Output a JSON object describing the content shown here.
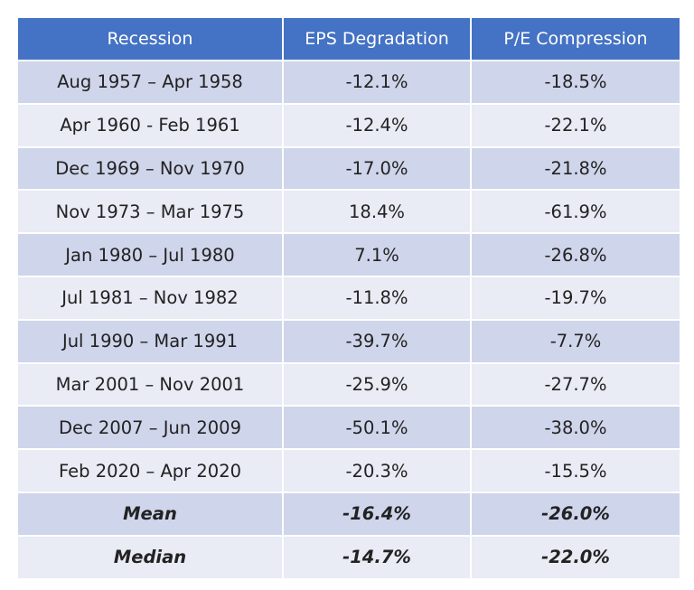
{
  "table": {
    "header": [
      "Recession",
      "EPS Degradation",
      "P/E Compression"
    ],
    "rows": [
      [
        "Aug 1957 – Apr 1958",
        "-12.1%",
        "-18.5%"
      ],
      [
        "Apr 1960 - Feb 1961",
        "-12.4%",
        "-22.1%"
      ],
      [
        "Dec 1969 – Nov 1970",
        "-17.0%",
        "-21.8%"
      ],
      [
        "Nov 1973 – Mar 1975",
        "18.4%",
        "-61.9%"
      ],
      [
        "Jan 1980 – Jul 1980",
        "7.1%",
        "-26.8%"
      ],
      [
        "Jul 1981 – Nov 1982",
        "-11.8%",
        "-19.7%"
      ],
      [
        "Jul 1990 – Mar 1991",
        "-39.7%",
        "-7.7%"
      ],
      [
        "Mar 2001 – Nov 2001",
        "-25.9%",
        "-27.7%"
      ],
      [
        "Dec 2007 – Jun 2009",
        "-50.1%",
        "-38.0%"
      ],
      [
        "Feb 2020 – Apr 2020",
        "-20.3%",
        "-15.5%"
      ]
    ],
    "summary": [
      [
        "Mean",
        "-16.4%",
        "-26.0%"
      ],
      [
        "Median",
        "-14.7%",
        "-22.0%"
      ]
    ]
  }
}
